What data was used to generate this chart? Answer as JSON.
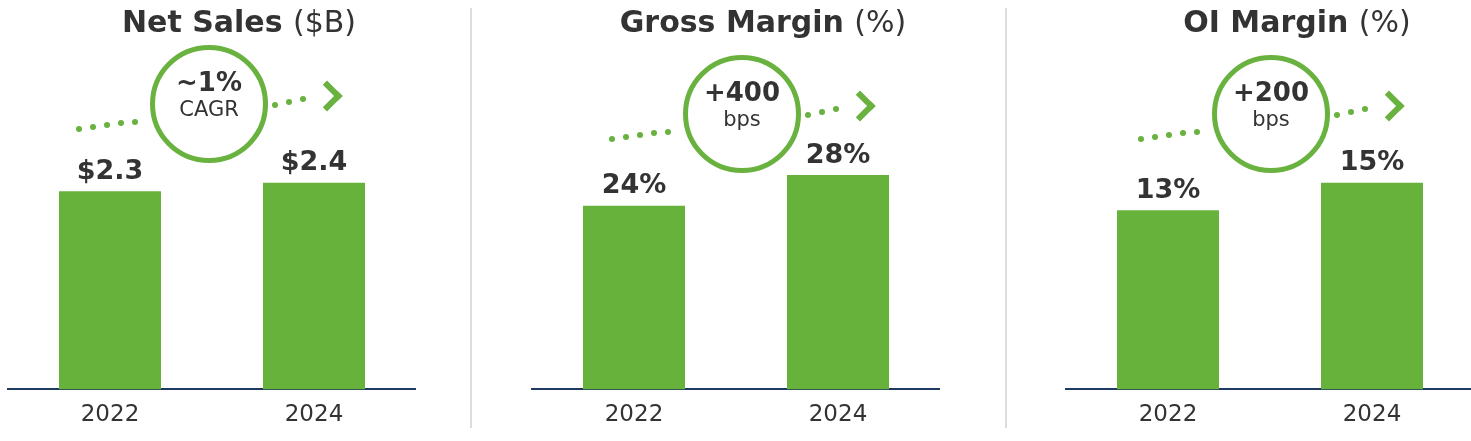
{
  "chart_data": [
    {
      "type": "bar",
      "title": "Net Sales ($B)",
      "categories": [
        "2022",
        "2024"
      ],
      "values": [
        2.3,
        2.4
      ],
      "value_labels": [
        "$2.3",
        "$2.4"
      ],
      "color": "#66b23a",
      "tick_labels": "x",
      "grid": false,
      "legend": false,
      "annotations": [
        "~1%",
        "CAGR"
      ]
    },
    {
      "type": "bar",
      "title": "Gross Margin (%)",
      "categories": [
        "2022",
        "2024"
      ],
      "values": [
        24,
        28
      ],
      "value_labels": [
        "24%",
        "28%"
      ],
      "color": "#66b23a",
      "tick_labels": "x",
      "grid": false,
      "legend": false,
      "annotations": [
        "+400",
        "bps"
      ]
    },
    {
      "type": "bar",
      "title": "OI Margin (%)",
      "categories": [
        "2022",
        "2024"
      ],
      "values": [
        13,
        15
      ],
      "value_labels": [
        "13%",
        "15%"
      ],
      "color": "#66b23a",
      "tick_labels": "x",
      "grid": false,
      "legend": false,
      "annotations": [
        "+200",
        "bps"
      ]
    }
  ]
}
